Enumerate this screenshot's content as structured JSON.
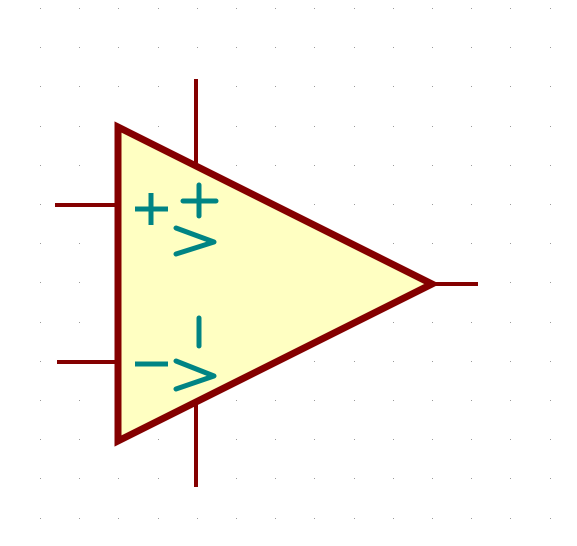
{
  "canvas": {
    "background": "#ffffff",
    "grid_dot_color": "#9a9a9a"
  },
  "component": {
    "type": "operational-amplifier",
    "body_fill": "#ffffc2",
    "outline_color": "#840000",
    "pin_color": "#840000",
    "label_color": "#008484"
  },
  "pins": [
    {
      "name": "non-inverting-input",
      "label": "+"
    },
    {
      "name": "inverting-input",
      "label": "-"
    },
    {
      "name": "output",
      "label": ""
    },
    {
      "name": "positive-supply",
      "label": ""
    },
    {
      "name": "negative-supply",
      "label": ""
    }
  ],
  "labels": {
    "non_inverting": "+",
    "inverting": "-",
    "positive_rail_symbol": "V+",
    "negative_rail_symbol": "V-"
  }
}
